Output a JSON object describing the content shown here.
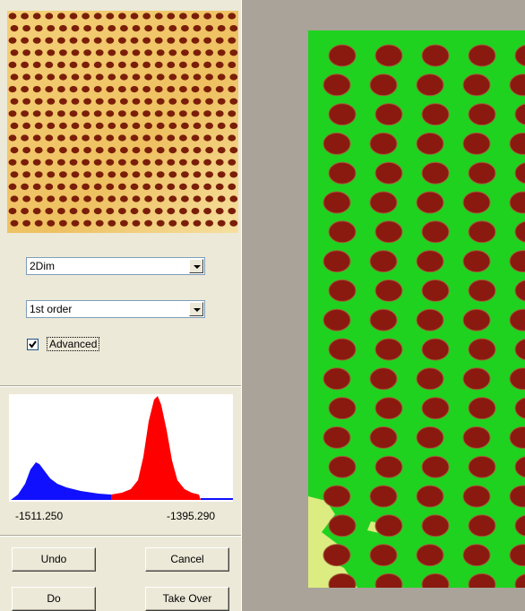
{
  "mode_dropdown": {
    "value": "2Dim"
  },
  "order_dropdown": {
    "value": "1st order"
  },
  "advanced": {
    "label": "Advanced",
    "checked": true
  },
  "histogram": {
    "min_label": "-1511.250",
    "max_label": "-1395.290"
  },
  "buttons": {
    "undo": "Undo",
    "cancel": "Cancel",
    "do": "Do",
    "take_over": "Take Over"
  },
  "colors": {
    "low_band": "#1010ff",
    "high_band": "#ff0000",
    "surface": "#1fd21f",
    "feature": "#8a1a10",
    "preview_bg": "#f0c060",
    "preview_dot": "#7a1e08"
  },
  "icons": {
    "dropdown": "chevron-down-icon",
    "check": "check-icon"
  }
}
